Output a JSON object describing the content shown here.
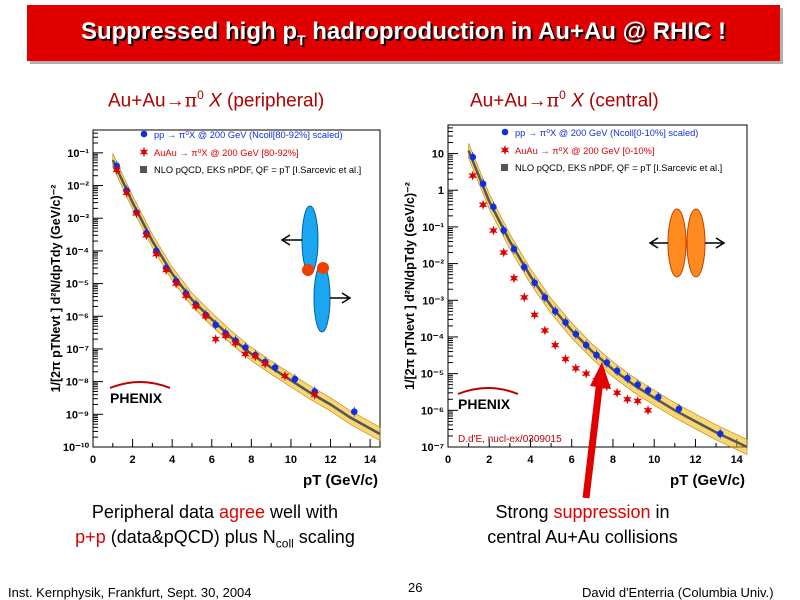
{
  "slide": {
    "title_main": "Suppressed high p",
    "title_sub": "T",
    "title_rest": " hadroproduction in Au+Au @ RHIC !",
    "page_number": "26",
    "footer_left": "Inst. Kernphysik, Frankfurt, Sept. 30, 2004",
    "footer_right": "David d'Enterria (Columbia Univ.)"
  },
  "panels": [
    {
      "subtitle_pre": "Au+Au",
      "subtitle_arrow": "→",
      "subtitle_pi": "π",
      "subtitle_sup": "0",
      "subtitle_x": " X",
      "subtitle_post": " (peripheral)",
      "caption_line1_pre": "Peripheral data ",
      "caption_line1_red": "agree",
      "caption_line1_post": " well with",
      "caption_line2_red": "p+p",
      "caption_line2_post": " (data&pQCD) plus N",
      "caption_line2_sub": "coll",
      "caption_line2_end": " scaling"
    },
    {
      "subtitle_pre": "Au+Au",
      "subtitle_arrow": "→",
      "subtitle_pi": "π",
      "subtitle_sup": "0",
      "subtitle_x": " X",
      "subtitle_post": " (central)",
      "caption_line1_pre": "Strong ",
      "caption_line1_red": "suppression",
      "caption_line1_post": " in",
      "caption_line2_pre": "central Au+Au collisions",
      "reference": "D.d'E, nucl-ex/0309015"
    }
  ],
  "chart_data": [
    {
      "type": "scatter",
      "ylabel": "1/[2π pTNevt ] d²N/dpTdy (GeV/c)⁻²",
      "xlabel": "pT (GeV/c)",
      "log_y": true,
      "xlim": [
        0,
        14.5
      ],
      "ylim": [
        1e-10,
        0.5
      ],
      "xticks": [
        "0",
        "2",
        "4",
        "6",
        "8",
        "10",
        "12",
        "14"
      ],
      "yticks": [
        "10⁻¹⁰",
        "10⁻⁹",
        "10⁻⁸",
        "10⁻⁷",
        "10⁻⁶",
        "10⁻⁵",
        "10⁻⁴",
        "10⁻³",
        "10⁻²",
        "10⁻¹"
      ],
      "logo": "PHENIX",
      "legend": [
        "pp → π⁰X @ 200 GeV (Ncoll[80-92%] scaled)",
        "AuAu → π⁰X @ 200 GeV [80-92%]",
        "NLO pQCD, EKS nPDF, QF = pT [I.Sarcevic et al.]"
      ],
      "series": [
        {
          "name": "pp → π⁰X @ 200 GeV (Ncoll[80-92%] scaled)",
          "marker": "circle",
          "color": "#1030e0",
          "x": [
            1.2,
            1.7,
            2.2,
            2.7,
            3.2,
            3.7,
            4.2,
            4.7,
            5.2,
            5.7,
            6.2,
            6.7,
            7.2,
            7.7,
            8.2,
            8.7,
            9.2,
            10.2,
            11.2,
            13.2
          ],
          "y": [
            0.04,
            0.007,
            0.0015,
            0.00035,
            0.0001,
            3e-05,
            1.2e-05,
            5e-06,
            2.3e-06,
            1.1e-06,
            5.5e-07,
            3e-07,
            1.8e-07,
            1.1e-07,
            6.5e-08,
            4e-08,
            2.7e-08,
            1.2e-08,
            5e-09,
            1.2e-09
          ]
        },
        {
          "name": "AuAu → π⁰X @ 200 GeV [80-92%]",
          "marker": "star",
          "color": "#e00000",
          "x": [
            1.2,
            1.7,
            2.2,
            2.7,
            3.2,
            3.7,
            4.2,
            4.7,
            5.2,
            5.7,
            6.2,
            6.7,
            7.2,
            7.7,
            8.2,
            8.7,
            9.7,
            11.2
          ],
          "y": [
            0.03,
            0.006,
            0.0014,
            0.0003,
            8e-05,
            2.6e-05,
            1e-05,
            4.2e-06,
            2e-06,
            1e-06,
            2e-07,
            2.5e-07,
            1.5e-07,
            7e-08,
            6e-08,
            3.5e-08,
            1.5e-08,
            4e-09
          ]
        }
      ],
      "nlo": {
        "name": "NLO pQCD, EKS nPDF, QF = pT [I.Sarcevic et al.]",
        "x": [
          1,
          2,
          3,
          4,
          5,
          6,
          7,
          8,
          9,
          10,
          11,
          12,
          13,
          14.5
        ],
        "y": [
          0.06,
          0.003,
          0.0002,
          2e-05,
          3.2e-06,
          8e-07,
          2.2e-07,
          7e-08,
          2.7e-08,
          1.1e-08,
          4.5e-09,
          2e-09,
          8e-10,
          2.5e-10
        ]
      }
    },
    {
      "type": "scatter",
      "ylabel": "1/[2π pTNevt ] d²N/dpTdy (GeV/c)⁻²",
      "xlabel": "pT (GeV/c)",
      "log_y": true,
      "xlim": [
        0,
        14.5
      ],
      "ylim": [
        1e-07,
        60
      ],
      "xticks": [
        "0",
        "2",
        "4",
        "6",
        "8",
        "10",
        "12",
        "14"
      ],
      "yticks": [
        "10⁻⁷",
        "10⁻⁶",
        "10⁻⁵",
        "10⁻⁴",
        "10⁻³",
        "10⁻²",
        "10⁻¹",
        "1",
        "10"
      ],
      "logo": "PHENIX",
      "legend": [
        "pp → π⁰X @ 200 GeV (Ncoll[0-10%] scaled)",
        "AuAu → π⁰X @ 200 GeV [0-10%]",
        "NLO pQCD, EKS nPDF, QF = pT [I.Sarcevic et al.]"
      ],
      "series": [
        {
          "name": "pp → π⁰X @ 200 GeV (Ncoll[0-10%] scaled)",
          "marker": "circle",
          "color": "#1030e0",
          "x": [
            1.2,
            1.7,
            2.2,
            2.7,
            3.2,
            3.7,
            4.2,
            4.7,
            5.2,
            5.7,
            6.2,
            6.7,
            7.2,
            7.7,
            8.2,
            8.7,
            9.2,
            9.7,
            10.2,
            11.2,
            13.2
          ],
          "y": [
            8,
            1.5,
            0.35,
            0.08,
            0.025,
            0.008,
            0.003,
            0.0012,
            0.0005,
            0.00025,
            0.00012,
            6e-05,
            3.2e-05,
            2e-05,
            1.2e-05,
            7.5e-06,
            5e-06,
            3.5e-06,
            2.3e-06,
            1.1e-06,
            2.3e-07
          ]
        },
        {
          "name": "AuAu → π⁰X @ 200 GeV [0-10%]",
          "marker": "star",
          "color": "#e00000",
          "x": [
            1.2,
            1.7,
            2.2,
            2.7,
            3.2,
            3.7,
            4.2,
            4.7,
            5.2,
            5.7,
            6.2,
            6.7,
            7.2,
            7.7,
            8.2,
            8.7,
            9.2,
            9.7
          ],
          "y": [
            2.5,
            0.4,
            0.08,
            0.02,
            0.004,
            0.0012,
            0.0004,
            0.00015,
            6e-05,
            2.5e-05,
            1.4e-05,
            1e-05,
            6.5e-06,
            4.5e-06,
            3e-06,
            2e-06,
            1.8e-06,
            1e-06
          ]
        }
      ],
      "nlo": {
        "name": "NLO pQCD, EKS nPDF, QF = pT [I.Sarcevic et al.]",
        "x": [
          1,
          2,
          3,
          4,
          5,
          6,
          7,
          8,
          9,
          10,
          11,
          12,
          13,
          14.5
        ],
        "y": [
          12,
          0.5,
          0.04,
          0.0045,
          0.0007,
          0.00015,
          4e-05,
          1.3e-05,
          5e-06,
          2.2e-06,
          1e-06,
          5e-07,
          2.5e-07,
          1e-07
        ]
      }
    }
  ]
}
